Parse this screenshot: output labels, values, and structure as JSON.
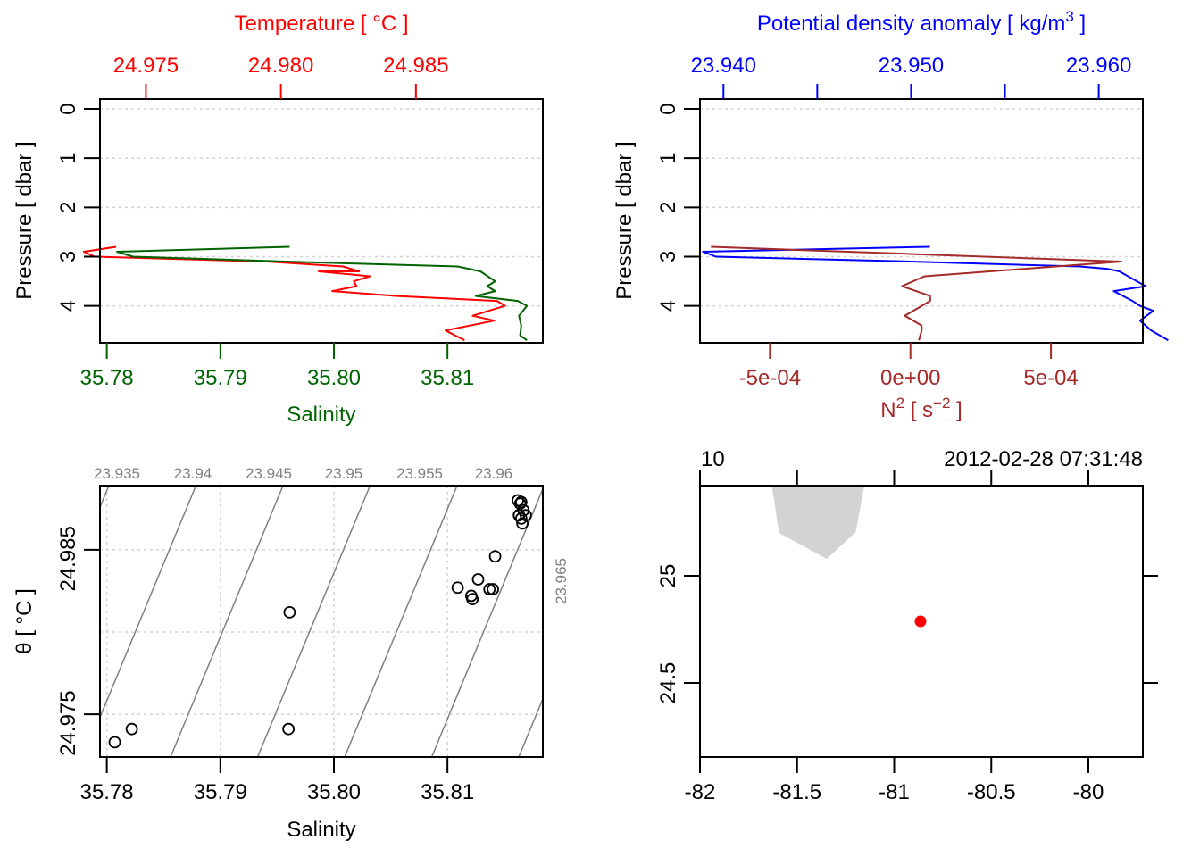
{
  "chart_data": [
    {
      "id": "profile_ts",
      "type": "line",
      "title": "",
      "top_axis_label": "Temperature [ °C ]",
      "bottom_axis_label": "Salinity",
      "ylabel": "Pressure [ dbar ]",
      "colors": {
        "temperature": "#ff0000",
        "salinity": "#006400"
      },
      "y_ticks": [
        "0",
        "1",
        "2",
        "3",
        "4"
      ],
      "y_tick_values": [
        0,
        1,
        2,
        3,
        4
      ],
      "ylim": [
        4.75,
        -0.2
      ],
      "top_ticks": [
        "24.975",
        "24.980",
        "24.985"
      ],
      "top_tick_values": [
        24.975,
        24.98,
        24.985
      ],
      "bottom_ticks": [
        "35.78",
        "35.79",
        "35.80",
        "35.81"
      ],
      "bottom_tick_values": [
        35.78,
        35.79,
        35.8,
        35.81
      ],
      "salinity_lim": [
        35.7794,
        35.8184
      ],
      "temperature_lim": [
        24.9733,
        24.9897
      ],
      "grid": true,
      "series": [
        {
          "name": "Temperature",
          "axis": "top",
          "x": [
            24.9739,
            24.9727,
            24.9731,
            24.9795,
            24.9823,
            24.9829,
            24.9814,
            24.9833,
            24.9827,
            24.9828,
            24.9819,
            24.9843,
            24.988,
            24.9883,
            24.9871,
            24.9879,
            24.9861,
            24.9868
          ],
          "y": [
            2.8,
            2.9,
            3.0,
            3.1,
            3.2,
            3.3,
            3.3,
            3.4,
            3.5,
            3.6,
            3.7,
            3.8,
            3.9,
            4.0,
            4.2,
            4.3,
            4.5,
            4.7
          ]
        },
        {
          "name": "Salinity",
          "axis": "bottom",
          "x": [
            35.7961,
            35.7809,
            35.7823,
            35.7958,
            35.8109,
            35.8129,
            35.8142,
            35.8135,
            35.8142,
            35.8125,
            35.8162,
            35.817,
            35.8163,
            35.8165,
            35.8164,
            35.817
          ],
          "y": [
            2.8,
            2.9,
            3.0,
            3.1,
            3.2,
            3.3,
            3.5,
            3.6,
            3.7,
            3.8,
            3.9,
            4.0,
            4.2,
            4.4,
            4.6,
            4.7
          ]
        }
      ]
    },
    {
      "id": "profile_density_n2",
      "type": "line",
      "top_axis_label": "Potential density anomaly [ kg/m",
      "top_axis_label_sup": "3",
      "top_axis_label_end": " ]",
      "bottom_axis_label_base": "N",
      "bottom_axis_label_sup": "2",
      "bottom_axis_label_mid": " [ s",
      "bottom_axis_label_sup2": "−2",
      "bottom_axis_label_end": " ]",
      "ylabel": "Pressure [ dbar ]",
      "colors": {
        "density": "#0000ff",
        "n2": "#a52a2a"
      },
      "y_ticks": [
        "0",
        "1",
        "2",
        "3",
        "4"
      ],
      "y_tick_values": [
        0,
        1,
        2,
        3,
        4
      ],
      "ylim": [
        4.75,
        -0.2
      ],
      "top_ticks": [
        "23.940",
        "",
        "23.950",
        "",
        "23.960"
      ],
      "top_tick_values": [
        23.94,
        23.945,
        23.95,
        23.955,
        23.96
      ],
      "bottom_ticks": [
        "-5e-04",
        "0e+00",
        "5e-04"
      ],
      "bottom_tick_values": [
        -0.0005,
        0.0,
        0.0005
      ],
      "density_lim": [
        23.93875,
        23.96235
      ],
      "n2_lim": [
        -0.000749,
        0.000827
      ],
      "grid": true,
      "series": [
        {
          "name": "Potential density anomaly",
          "axis": "top",
          "x": [
            23.951,
            23.9389,
            23.9396,
            23.95,
            23.959,
            23.9605,
            23.9611,
            23.9625,
            23.9608,
            23.9618,
            23.9622,
            23.9629,
            23.9622,
            23.9628,
            23.9637
          ],
          "y": [
            2.8,
            2.9,
            3.0,
            3.1,
            3.2,
            3.25,
            3.3,
            3.6,
            3.7,
            3.9,
            4.0,
            4.1,
            4.3,
            4.5,
            4.7
          ]
        },
        {
          "name": "N2",
          "axis": "bottom",
          "x": [
            -0.00071,
            0.00075,
            5e-05,
            -3e-05,
            2e-05,
            7e-05,
            7e-05,
            -2e-05,
            4e-05,
            4e-05,
            3e-05
          ],
          "y": [
            2.8,
            3.1,
            3.4,
            3.6,
            3.7,
            3.8,
            3.9,
            4.2,
            4.4,
            4.5,
            4.7
          ]
        }
      ]
    },
    {
      "id": "ts_diagram",
      "type": "scatter",
      "xlabel": "Salinity",
      "ylabel": "θ [ °C ]",
      "x_ticks": [
        "35.78",
        "35.79",
        "35.80",
        "35.81"
      ],
      "x_tick_values": [
        35.78,
        35.79,
        35.8,
        35.81
      ],
      "y_ticks": [
        "24.975",
        "24.985"
      ],
      "y_tick_values": [
        24.975,
        24.985
      ],
      "y_grid_values": [
        24.975,
        24.98,
        24.985
      ],
      "xlim": [
        35.7794,
        35.8184
      ],
      "ylim": [
        24.9724,
        24.9889
      ],
      "grid": true,
      "isopycnal_labels": [
        "23.935",
        "23.94",
        "23.945",
        "23.95",
        "23.955",
        "23.96",
        "23.965"
      ],
      "isopycnal_color": "#808080",
      "points": {
        "x": [
          35.7807,
          35.7822,
          35.796,
          35.7961,
          35.8109,
          35.8121,
          35.8122,
          35.8127,
          35.8137,
          35.814,
          35.8142,
          35.8162,
          35.8164,
          35.8165,
          35.8167,
          35.8163,
          35.8166,
          35.8169,
          35.8165,
          35.8163
        ],
        "y": [
          24.9733,
          24.9741,
          24.9741,
          24.9812,
          24.9827,
          24.9822,
          24.982,
          24.9832,
          24.9826,
          24.9826,
          24.9846,
          24.988,
          24.9878,
          24.9879,
          24.9874,
          24.9871,
          24.9866,
          24.9871,
          24.9869,
          24.9871
        ]
      }
    },
    {
      "id": "location_map",
      "type": "scatter",
      "top_left_label": "10",
      "top_right_label": "2012-02-28 07:31:48",
      "x_ticks": [
        "-82",
        "-81.5",
        "-81",
        "-80.5",
        "-80"
      ],
      "x_tick_values": [
        -82,
        -81.5,
        -81,
        -80.5,
        -80
      ],
      "y_ticks": [
        "25",
        "24.5"
      ],
      "y_tick_values": [
        25,
        24.5
      ],
      "xlim": [
        -82,
        -79.1379
      ],
      "ylim": [
        24.1375,
        25.4208
      ],
      "land_polygon": {
        "lon": [
          -81.6299,
          -81.5931,
          -81.3471,
          -81.1977,
          -81.154
        ],
        "lat": [
          25.4208,
          25.2,
          25.0792,
          25.2042,
          25.4208
        ],
        "color": "#d3d3d3"
      },
      "station": {
        "lon": -80.8644,
        "lat": 24.7875,
        "color": "#ff0000"
      }
    }
  ]
}
